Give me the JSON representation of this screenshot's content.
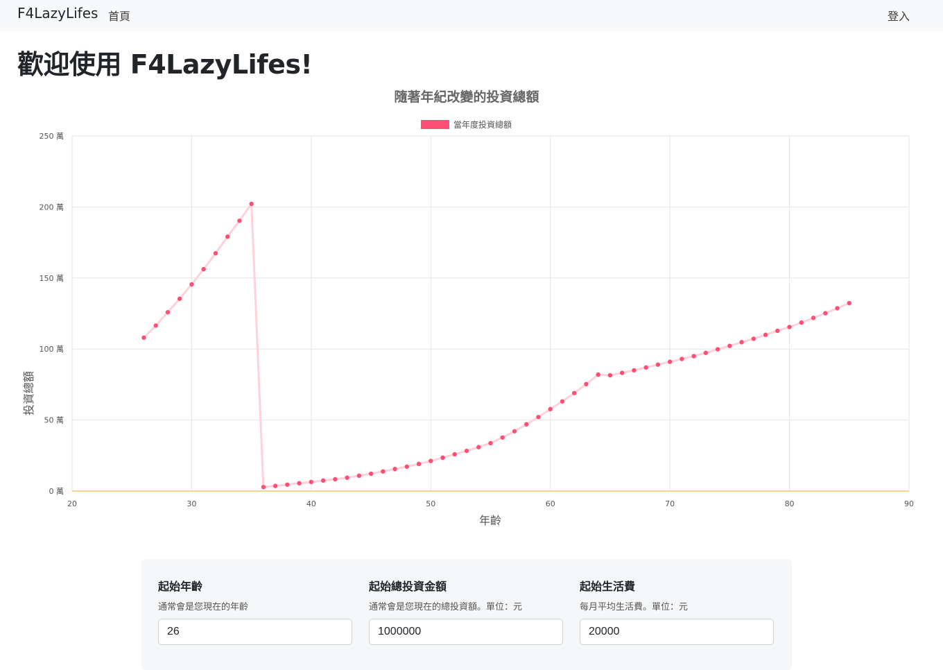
{
  "nav": {
    "brand": "F4LazyLifes",
    "home": "首頁",
    "login": "登入"
  },
  "page_title": "歡迎使用 F4LazyLifes!",
  "colors": {
    "series": "#ff4f74",
    "series_line": "#ffd2da",
    "zero_line": "#f6d58e",
    "grid": "#e6e6e6"
  },
  "chart_data": {
    "type": "line",
    "title": "隨著年紀改變的投資總額",
    "xlabel": "年齡",
    "ylabel": "投資總額",
    "xlim": [
      20,
      90
    ],
    "ylim": [
      0,
      250
    ],
    "x_ticks": [
      "20",
      "30",
      "40",
      "50",
      "60",
      "70",
      "80",
      "90"
    ],
    "y_ticks": [
      "0 萬",
      "50 萬",
      "100 萬",
      "150 萬",
      "200 萬",
      "250 萬"
    ],
    "grid": true,
    "legend_position": "top-center",
    "series": [
      {
        "name": "當年度投資總額",
        "x": [
          26,
          27,
          28,
          29,
          30,
          31,
          32,
          33,
          34,
          35,
          36,
          37,
          38,
          39,
          40,
          41,
          42,
          43,
          44,
          45,
          46,
          47,
          48,
          49,
          50,
          51,
          52,
          53,
          54,
          55,
          56,
          57,
          58,
          59,
          60,
          61,
          62,
          63,
          64,
          65,
          66,
          67,
          68,
          69,
          70,
          71,
          72,
          73,
          74,
          75,
          76,
          77,
          78,
          79,
          80,
          81,
          82,
          83,
          84,
          85
        ],
        "y": [
          108,
          116.5,
          125.9,
          135.4,
          145.5,
          156.2,
          167.4,
          179.1,
          190.3,
          202.2,
          2.8,
          3.6,
          4.5,
          5.5,
          6.4,
          7.4,
          8.3,
          9.4,
          10.8,
          12.2,
          13.8,
          15.5,
          17.2,
          19.1,
          21.2,
          23.5,
          25.9,
          28.3,
          30.9,
          33.7,
          37.7,
          42.1,
          47.0,
          52.1,
          57.7,
          63.1,
          69.0,
          75.3,
          82.0,
          81.5,
          83.2,
          85.0,
          87.0,
          89.0,
          91.0,
          93.0,
          95.0,
          97.3,
          99.8,
          102.2,
          104.8,
          107.2,
          110.0,
          112.8,
          115.5,
          118.6,
          121.9,
          125.2,
          128.7,
          132.3
        ]
      }
    ]
  },
  "form": {
    "fields": [
      {
        "label": "起始年齡",
        "help": "通常會是您現在的年齡",
        "value": "26"
      },
      {
        "label": "起始總投資金額",
        "help": "通常會是您現在的總投資額。單位：元",
        "value": "1000000"
      },
      {
        "label": "起始生活費",
        "help": "每月平均生活費。單位：元",
        "value": "20000"
      }
    ]
  }
}
